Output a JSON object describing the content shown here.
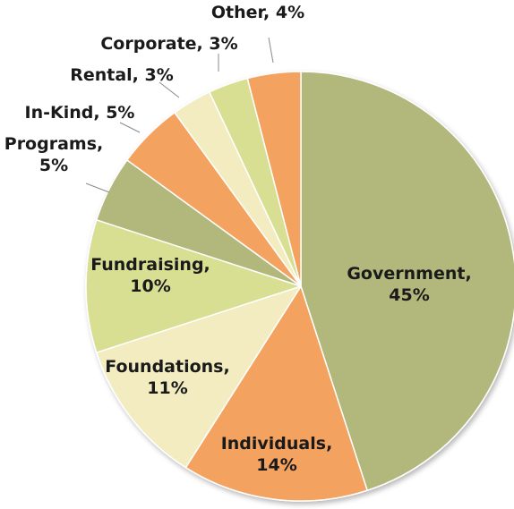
{
  "chart_data": {
    "type": "pie",
    "start_angle_deg": 0,
    "direction": "clockwise",
    "slices": [
      {
        "label": "Government",
        "value": 45,
        "display": "45%",
        "color": "#b2b87c"
      },
      {
        "label": "Individuals",
        "value": 14,
        "display": "14%",
        "color": "#f4a261"
      },
      {
        "label": "Foundations",
        "value": 11,
        "display": "11%",
        "color": "#f2ecc0"
      },
      {
        "label": "Fundraising",
        "value": 10,
        "display": "10%",
        "color": "#d9df92"
      },
      {
        "label": "Programs",
        "value": 5,
        "display": "5%",
        "color": "#b2b87c"
      },
      {
        "label": "In-Kind",
        "value": 5,
        "display": "5%",
        "color": "#f4a261"
      },
      {
        "label": "Rental",
        "value": 3,
        "display": "3%",
        "color": "#f2ecc0"
      },
      {
        "label": "Corporate",
        "value": 3,
        "display": "3%",
        "color": "#d9df92"
      },
      {
        "label": "Other",
        "value": 4,
        "display": "4%",
        "color": "#f4a261"
      }
    ]
  }
}
